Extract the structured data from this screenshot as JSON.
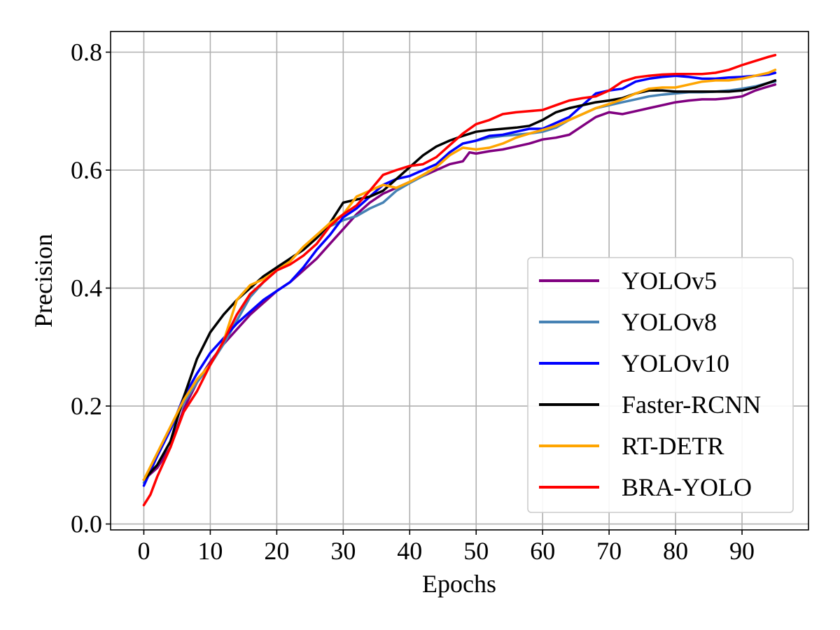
{
  "chart_data": {
    "type": "line",
    "title": "",
    "xlabel": "Epochs",
    "ylabel": "Precision",
    "xlim": [
      -5,
      100
    ],
    "ylim": [
      -0.01,
      0.835
    ],
    "xticks": [
      0,
      10,
      20,
      30,
      40,
      50,
      60,
      70,
      80,
      90
    ],
    "xtick_labels": [
      "0",
      "10",
      "20",
      "30",
      "40",
      "50",
      "60",
      "70",
      "80",
      "90"
    ],
    "yticks": [
      0.0,
      0.2,
      0.4,
      0.6,
      0.8
    ],
    "ytick_labels": [
      "0.0",
      "0.2",
      "0.4",
      "0.6",
      "0.8"
    ],
    "grid": true,
    "legend_position": "lower-right",
    "series": [
      {
        "name": "YOLOv5",
        "color": "#800080",
        "x": [
          0,
          2,
          4,
          6,
          8,
          10,
          12,
          14,
          16,
          18,
          20,
          22,
          24,
          26,
          28,
          30,
          32,
          34,
          36,
          38,
          40,
          42,
          44,
          46,
          48,
          49,
          50,
          52,
          54,
          56,
          58,
          60,
          62,
          64,
          66,
          68,
          70,
          72,
          74,
          76,
          78,
          80,
          82,
          84,
          86,
          88,
          90,
          92,
          94,
          95
        ],
        "values": [
          0.075,
          0.095,
          0.13,
          0.195,
          0.24,
          0.275,
          0.305,
          0.33,
          0.355,
          0.375,
          0.395,
          0.41,
          0.43,
          0.45,
          0.475,
          0.5,
          0.525,
          0.545,
          0.56,
          0.57,
          0.58,
          0.59,
          0.6,
          0.61,
          0.615,
          0.63,
          0.628,
          0.632,
          0.635,
          0.64,
          0.645,
          0.652,
          0.655,
          0.66,
          0.675,
          0.69,
          0.698,
          0.695,
          0.7,
          0.705,
          0.71,
          0.715,
          0.718,
          0.72,
          0.72,
          0.722,
          0.725,
          0.735,
          0.742,
          0.745
        ]
      },
      {
        "name": "YOLOv8",
        "color": "#4682b4",
        "x": [
          0,
          2,
          4,
          6,
          8,
          10,
          12,
          14,
          16,
          18,
          20,
          22,
          24,
          26,
          28,
          30,
          32,
          34,
          36,
          38,
          40,
          42,
          44,
          46,
          48,
          50,
          52,
          54,
          56,
          58,
          60,
          62,
          64,
          66,
          68,
          70,
          72,
          74,
          76,
          78,
          80,
          82,
          84,
          86,
          88,
          90,
          92,
          94,
          95
        ],
        "values": [
          0.07,
          0.115,
          0.16,
          0.205,
          0.24,
          0.27,
          0.305,
          0.345,
          0.385,
          0.41,
          0.43,
          0.45,
          0.465,
          0.485,
          0.505,
          0.515,
          0.522,
          0.535,
          0.545,
          0.565,
          0.578,
          0.59,
          0.605,
          0.63,
          0.645,
          0.65,
          0.655,
          0.658,
          0.66,
          0.662,
          0.665,
          0.672,
          0.685,
          0.695,
          0.705,
          0.71,
          0.715,
          0.72,
          0.725,
          0.728,
          0.73,
          0.732,
          0.732,
          0.733,
          0.735,
          0.738,
          0.742,
          0.748,
          0.75
        ]
      },
      {
        "name": "YOLOv10",
        "color": "#0000ff",
        "x": [
          0,
          2,
          4,
          6,
          8,
          10,
          12,
          14,
          16,
          18,
          20,
          22,
          24,
          26,
          28,
          30,
          32,
          34,
          36,
          38,
          40,
          42,
          44,
          46,
          48,
          50,
          52,
          54,
          56,
          58,
          60,
          62,
          64,
          66,
          68,
          70,
          72,
          74,
          76,
          78,
          80,
          82,
          84,
          86,
          88,
          90,
          92,
          94,
          95
        ],
        "values": [
          0.065,
          0.115,
          0.16,
          0.215,
          0.255,
          0.29,
          0.315,
          0.34,
          0.36,
          0.38,
          0.395,
          0.41,
          0.435,
          0.465,
          0.49,
          0.52,
          0.535,
          0.555,
          0.575,
          0.585,
          0.59,
          0.6,
          0.61,
          0.63,
          0.645,
          0.65,
          0.658,
          0.66,
          0.665,
          0.67,
          0.67,
          0.68,
          0.69,
          0.71,
          0.73,
          0.735,
          0.738,
          0.75,
          0.755,
          0.758,
          0.76,
          0.758,
          0.755,
          0.755,
          0.757,
          0.758,
          0.76,
          0.762,
          0.765
        ]
      },
      {
        "name": "Faster-RCNN",
        "color": "#000000",
        "x": [
          0,
          2,
          4,
          6,
          8,
          10,
          12,
          14,
          16,
          18,
          20,
          22,
          24,
          26,
          28,
          30,
          32,
          34,
          36,
          38,
          40,
          42,
          44,
          46,
          48,
          50,
          52,
          54,
          56,
          58,
          60,
          62,
          64,
          66,
          68,
          70,
          72,
          74,
          76,
          78,
          80,
          82,
          84,
          86,
          88,
          90,
          92,
          94,
          95
        ],
        "values": [
          0.075,
          0.1,
          0.14,
          0.215,
          0.28,
          0.325,
          0.355,
          0.38,
          0.4,
          0.42,
          0.435,
          0.45,
          0.465,
          0.485,
          0.51,
          0.545,
          0.55,
          0.555,
          0.565,
          0.585,
          0.605,
          0.625,
          0.64,
          0.65,
          0.658,
          0.665,
          0.668,
          0.67,
          0.672,
          0.675,
          0.685,
          0.698,
          0.705,
          0.71,
          0.715,
          0.718,
          0.722,
          0.73,
          0.735,
          0.735,
          0.733,
          0.733,
          0.733,
          0.733,
          0.733,
          0.735,
          0.74,
          0.748,
          0.752
        ]
      },
      {
        "name": "RT-DETR",
        "color": "#ffa500",
        "x": [
          0,
          2,
          4,
          6,
          8,
          10,
          12,
          14,
          16,
          18,
          20,
          22,
          24,
          26,
          28,
          30,
          32,
          34,
          36,
          38,
          40,
          42,
          44,
          46,
          48,
          50,
          52,
          54,
          56,
          58,
          60,
          62,
          64,
          66,
          68,
          70,
          72,
          74,
          76,
          78,
          80,
          82,
          84,
          86,
          88,
          90,
          92,
          94,
          95
        ],
        "values": [
          0.075,
          0.12,
          0.165,
          0.21,
          0.245,
          0.27,
          0.31,
          0.38,
          0.405,
          0.415,
          0.43,
          0.445,
          0.47,
          0.49,
          0.51,
          0.525,
          0.555,
          0.565,
          0.575,
          0.57,
          0.58,
          0.592,
          0.605,
          0.625,
          0.638,
          0.635,
          0.638,
          0.645,
          0.655,
          0.662,
          0.668,
          0.675,
          0.685,
          0.695,
          0.705,
          0.712,
          0.72,
          0.73,
          0.738,
          0.74,
          0.74,
          0.745,
          0.75,
          0.752,
          0.752,
          0.755,
          0.76,
          0.765,
          0.77
        ]
      },
      {
        "name": "BRA-YOLO",
        "color": "#ff0000",
        "x": [
          0,
          1,
          2,
          4,
          6,
          8,
          10,
          12,
          14,
          16,
          18,
          20,
          22,
          24,
          26,
          28,
          30,
          32,
          34,
          36,
          38,
          40,
          42,
          44,
          46,
          48,
          50,
          52,
          54,
          56,
          58,
          60,
          62,
          64,
          66,
          68,
          70,
          72,
          74,
          76,
          78,
          80,
          82,
          84,
          86,
          88,
          90,
          92,
          94,
          95
        ],
        "values": [
          0.032,
          0.05,
          0.08,
          0.13,
          0.19,
          0.225,
          0.27,
          0.31,
          0.355,
          0.39,
          0.41,
          0.43,
          0.44,
          0.455,
          0.475,
          0.505,
          0.525,
          0.54,
          0.565,
          0.592,
          0.6,
          0.607,
          0.61,
          0.622,
          0.642,
          0.662,
          0.678,
          0.685,
          0.695,
          0.698,
          0.7,
          0.702,
          0.71,
          0.718,
          0.722,
          0.725,
          0.735,
          0.75,
          0.757,
          0.76,
          0.762,
          0.763,
          0.763,
          0.763,
          0.765,
          0.77,
          0.778,
          0.785,
          0.792,
          0.795
        ]
      }
    ]
  }
}
